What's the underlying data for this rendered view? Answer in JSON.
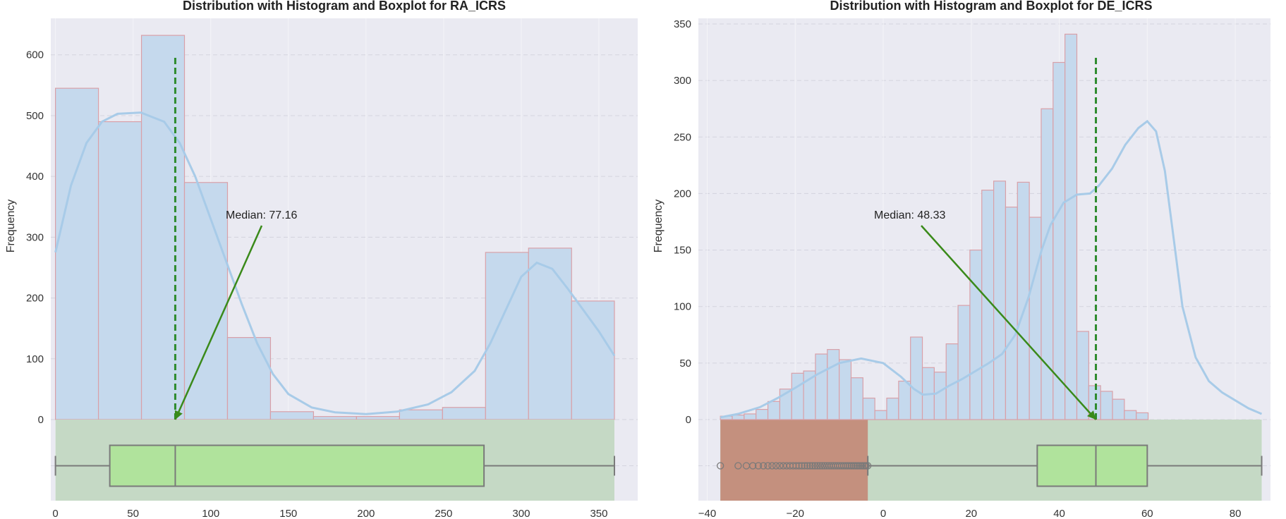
{
  "chart_data": [
    {
      "type": "bar",
      "title": "Distribution with Histogram and Boxplot for RA_ICRS",
      "xlabel": "",
      "ylabel": "Frequency",
      "xlim": [
        -3,
        375
      ],
      "ylim": [
        0,
        660
      ],
      "x_ticks": [
        0,
        50,
        100,
        150,
        200,
        250,
        300,
        350
      ],
      "y_ticks": [
        0,
        100,
        200,
        300,
        400,
        500,
        600
      ],
      "bin_edges": [
        0,
        27.7,
        55.4,
        83.1,
        110.8,
        138.5,
        166.2,
        193.9,
        221.6,
        249.3,
        277.0,
        304.7,
        332.4,
        360
      ],
      "values": [
        545,
        490,
        632,
        390,
        135,
        13,
        5,
        5,
        16,
        20,
        275,
        282,
        195
      ],
      "kde": [
        [
          0,
          275
        ],
        [
          10,
          385
        ],
        [
          20,
          455
        ],
        [
          30,
          490
        ],
        [
          40,
          503
        ],
        [
          55,
          505
        ],
        [
          70,
          490
        ],
        [
          80,
          455
        ],
        [
          90,
          400
        ],
        [
          100,
          330
        ],
        [
          110,
          260
        ],
        [
          120,
          190
        ],
        [
          130,
          125
        ],
        [
          140,
          75
        ],
        [
          150,
          42
        ],
        [
          165,
          20
        ],
        [
          180,
          12
        ],
        [
          200,
          9
        ],
        [
          220,
          13
        ],
        [
          240,
          25
        ],
        [
          255,
          45
        ],
        [
          270,
          80
        ],
        [
          280,
          125
        ],
        [
          290,
          180
        ],
        [
          300,
          235
        ],
        [
          310,
          258
        ],
        [
          320,
          248
        ],
        [
          330,
          215
        ],
        [
          340,
          180
        ],
        [
          350,
          145
        ],
        [
          360,
          105
        ]
      ],
      "median": 77.16,
      "median_label": "Median: 77.16",
      "boxplot": {
        "whisker_low": 0,
        "q1": 35,
        "median": 77.16,
        "q3": 276,
        "whisker_high": 360,
        "outliers": []
      },
      "colors": {
        "bars": "#c5d9ed",
        "bar_edge": "#d9a0a8",
        "kde": "#a8cbe8",
        "median_line": "#2e8b2e",
        "arrow": "#3a8a1a",
        "box_fill": "#b0e39c",
        "box_edge": "#7a7a7a",
        "box_band": "#c5d9c5",
        "plot_bg": "#eaeaf2"
      }
    },
    {
      "type": "bar",
      "title": "Distribution with Histogram and Boxplot for DE_ICRS",
      "xlabel": "",
      "ylabel": "Frequency",
      "xlim": [
        -42,
        88
      ],
      "ylim": [
        0,
        355
      ],
      "x_ticks": [
        -40,
        -20,
        0,
        20,
        40,
        60,
        80
      ],
      "y_ticks": [
        0,
        50,
        100,
        150,
        200,
        250,
        300,
        350
      ],
      "bin_edges": [
        -37,
        -34.3,
        -31.6,
        -28.9,
        -26.2,
        -23.5,
        -20.8,
        -18.1,
        -15.4,
        -12.7,
        -10,
        -7.3,
        -4.6,
        -1.9,
        0.8,
        3.5,
        6.2,
        8.9,
        11.6,
        14.3,
        17,
        19.7,
        22.4,
        25.1,
        27.8,
        30.5,
        33.2,
        35.9,
        38.6,
        41.3,
        44,
        46.7,
        49.4,
        52.1,
        54.8,
        57.5,
        60.2,
        62.9,
        65.6,
        68.3,
        71,
        73.7,
        76.4,
        79.1,
        81.8,
        84.5
      ],
      "values": [
        3,
        4,
        5,
        9,
        16,
        27,
        41,
        43,
        58,
        62,
        53,
        37,
        19,
        8,
        19,
        34,
        73,
        46,
        42,
        67,
        101,
        150,
        203,
        211,
        188,
        210,
        179,
        275,
        316,
        341,
        78,
        30,
        25,
        18,
        8,
        6,
        0,
        0,
        0,
        0,
        0,
        0,
        0,
        0,
        0
      ],
      "kde": [
        [
          -37,
          2
        ],
        [
          -33,
          5
        ],
        [
          -28,
          11
        ],
        [
          -24,
          19
        ],
        [
          -20,
          28
        ],
        [
          -15,
          40
        ],
        [
          -10,
          50
        ],
        [
          -5,
          54
        ],
        [
          0,
          50
        ],
        [
          4,
          38
        ],
        [
          7,
          27
        ],
        [
          9,
          22
        ],
        [
          12,
          23
        ],
        [
          15,
          30
        ],
        [
          18,
          36
        ],
        [
          21,
          43
        ],
        [
          24,
          50
        ],
        [
          27,
          58
        ],
        [
          30,
          75
        ],
        [
          33,
          108
        ],
        [
          36,
          150
        ],
        [
          38,
          172
        ],
        [
          41,
          192
        ],
        [
          44,
          199
        ],
        [
          47,
          200
        ],
        [
          49,
          207
        ],
        [
          52,
          222
        ],
        [
          55,
          243
        ],
        [
          58,
          258
        ],
        [
          60,
          264
        ],
        [
          62,
          255
        ],
        [
          64,
          220
        ],
        [
          66,
          160
        ],
        [
          68,
          100
        ],
        [
          71,
          55
        ],
        [
          74,
          34
        ],
        [
          77,
          24
        ],
        [
          80,
          17
        ],
        [
          83,
          10
        ],
        [
          86,
          5
        ]
      ],
      "median": 48.33,
      "median_label": "Median: 48.33",
      "boxplot": {
        "whisker_low": -3.5,
        "q1": 35,
        "median": 48.33,
        "q3": 60,
        "whisker_high": 86,
        "outliers_range": [
          -37,
          -3.5
        ]
      },
      "colors": {
        "bars": "#c5d9ed",
        "bar_edge": "#d9a0a8",
        "kde": "#a8cbe8",
        "median_line": "#2e8b2e",
        "arrow": "#3a8a1a",
        "box_fill": "#b0e39c",
        "box_edge": "#7a7a7a",
        "box_band": "#c5d9c5",
        "outlier_band": "#c4907e",
        "plot_bg": "#eaeaf2"
      }
    }
  ]
}
